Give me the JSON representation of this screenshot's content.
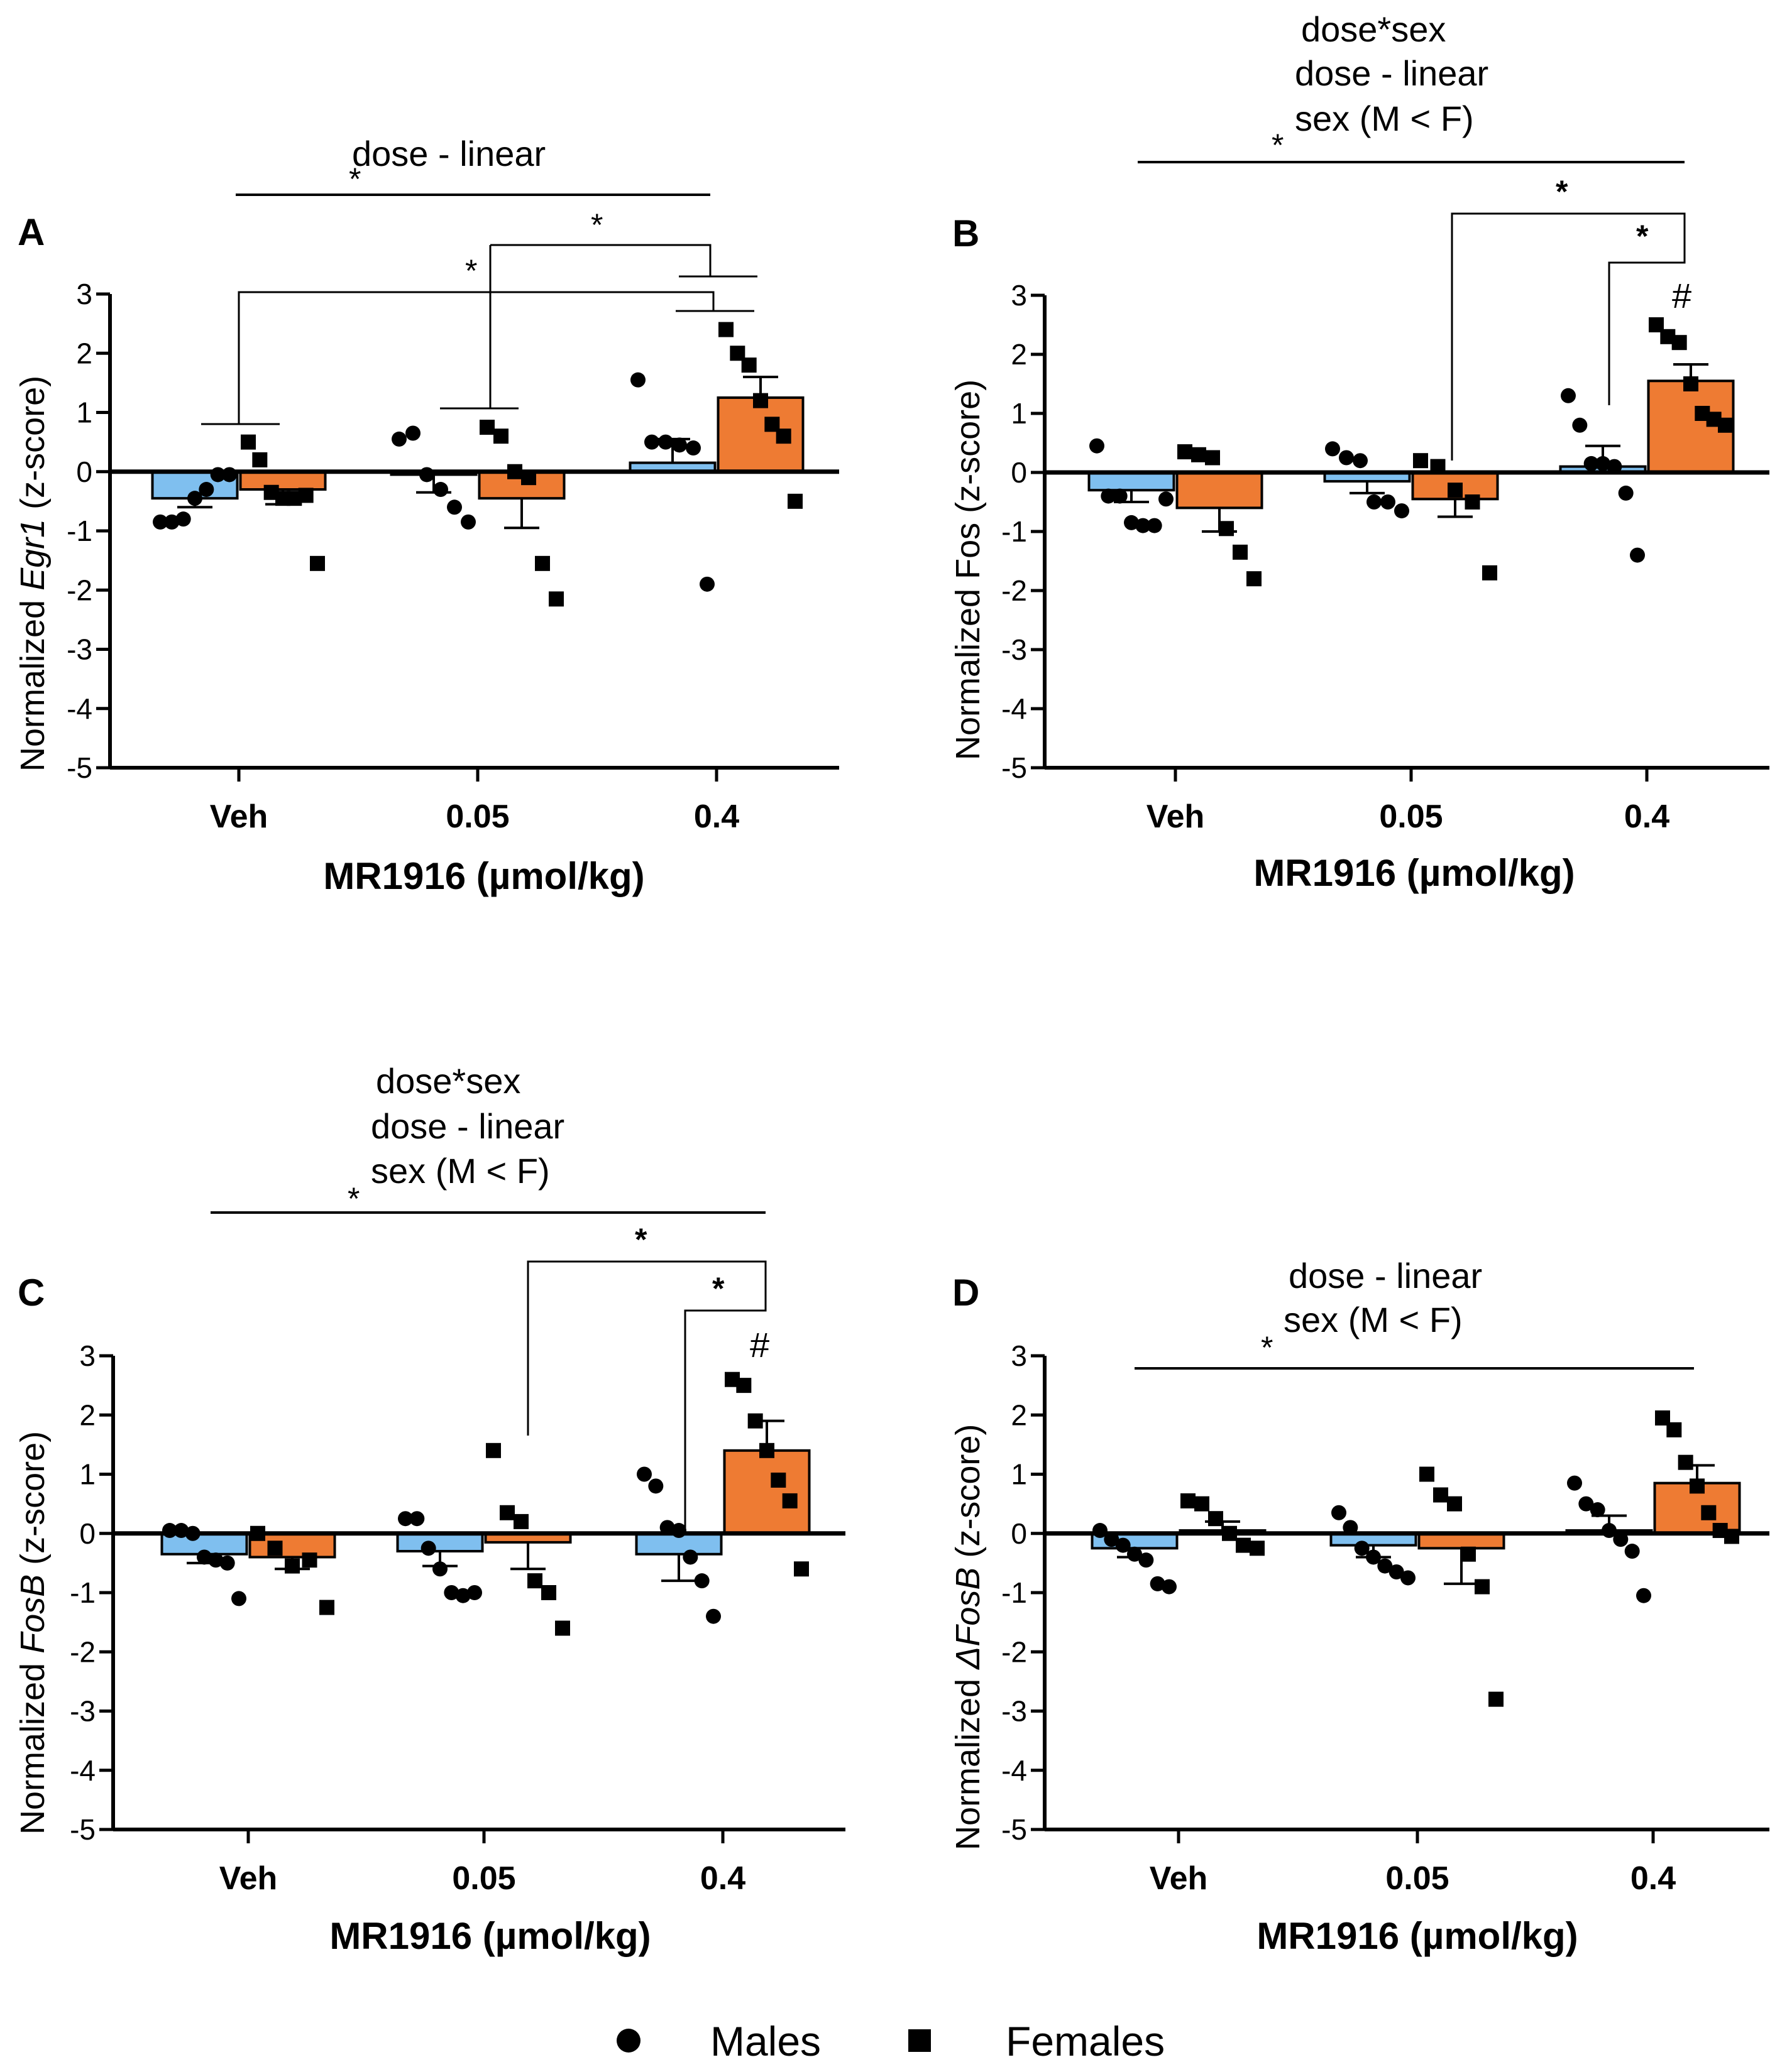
{
  "colors": {
    "male": "#7fbfef",
    "female": "#ee7b33",
    "axis": "#000000"
  },
  "legend": {
    "males_label": "Males",
    "females_label": "Females",
    "males_marker": "circle",
    "females_marker": "square"
  },
  "chart_data": [
    {
      "panel": "A",
      "type": "bar",
      "title": "",
      "ylabel_prefix": "Normalized ",
      "ylabel_gene": "Egr1",
      "ylabel_suffix": " (z-score)",
      "xlabel": "MR1916 (µmol/kg)",
      "categories": [
        "Veh",
        "0.05",
        "0.4"
      ],
      "ylim": [
        -5,
        3
      ],
      "yticks": [
        "3",
        "2",
        "1",
        "0",
        "-1",
        "-2",
        "-3",
        "-4",
        "-5"
      ],
      "series": [
        {
          "name": "Males",
          "values": [
            -0.45,
            -0.05,
            0.15
          ],
          "sem": [
            0.15,
            0.3,
            0.4
          ],
          "points": [
            [
              -0.85,
              -0.85,
              -0.8,
              -0.45,
              -0.3,
              -0.05,
              -0.05
            ],
            [
              0.55,
              0.65,
              -0.05,
              -0.3,
              -0.6,
              -0.85
            ],
            [
              1.55,
              0.5,
              0.5,
              0.45,
              0.4,
              -1.9
            ]
          ]
        },
        {
          "name": "Females",
          "values": [
            -0.3,
            -0.45,
            1.25
          ],
          "sem": [
            0.25,
            0.5,
            0.35
          ],
          "points": [
            [
              0.5,
              0.2,
              -0.35,
              -0.45,
              -0.45,
              -0.4,
              -1.55
            ],
            [
              0.75,
              0.6,
              0.0,
              -0.1,
              -1.55,
              -2.15
            ],
            [
              2.4,
              2.0,
              1.8,
              1.2,
              0.8,
              0.6,
              -0.5
            ]
          ]
        }
      ],
      "annotations": {
        "main_lines": [
          "dose - linear"
        ],
        "sig_mark": "*",
        "bracket_mark": "*"
      }
    },
    {
      "panel": "B",
      "type": "bar",
      "title": "",
      "ylabel_prefix": "Normalized ",
      "ylabel_gene": "Fos",
      "ylabel_suffix": " (z-score)",
      "xlabel": "MR1916 (µmol/kg)",
      "categories": [
        "Veh",
        "0.05",
        "0.4"
      ],
      "ylim": [
        -5,
        3
      ],
      "yticks": [
        "3",
        "2",
        "1",
        "0",
        "-1",
        "-2",
        "-3",
        "-4",
        "-5"
      ],
      "series": [
        {
          "name": "Males",
          "values": [
            -0.3,
            -0.15,
            0.1
          ],
          "sem": [
            0.2,
            0.2,
            0.35
          ],
          "points": [
            [
              0.45,
              -0.4,
              -0.4,
              -0.85,
              -0.9,
              -0.9,
              -0.45
            ],
            [
              0.4,
              0.25,
              0.2,
              -0.5,
              -0.5,
              -0.65
            ],
            [
              1.3,
              0.8,
              0.15,
              0.15,
              0.1,
              -0.35,
              -1.4
            ]
          ]
        },
        {
          "name": "Females",
          "values": [
            -0.6,
            -0.45,
            1.55
          ],
          "sem": [
            0.4,
            0.3,
            0.28
          ],
          "points": [
            [
              0.35,
              0.3,
              0.25,
              -0.95,
              -1.35,
              -1.8
            ],
            [
              0.2,
              0.1,
              -0.3,
              -0.5,
              -1.7
            ],
            [
              2.5,
              2.3,
              2.2,
              1.5,
              1.0,
              0.9,
              0.8
            ]
          ]
        }
      ],
      "annotations": {
        "main_lines": [
          "dose*sex",
          "dose - linear",
          "sex (M < F)"
        ],
        "sig_mark": "*",
        "bracket_mark": "*",
        "hash_mark": "#"
      }
    },
    {
      "panel": "C",
      "type": "bar",
      "title": "",
      "ylabel_prefix": "Normalized ",
      "ylabel_gene": "FosB",
      "ylabel_suffix": " (z-score)",
      "xlabel": "MR1916 (µmol/kg)",
      "categories": [
        "Veh",
        "0.05",
        "0.4"
      ],
      "ylim": [
        -5,
        3
      ],
      "yticks": [
        "3",
        "2",
        "1",
        "0",
        "-1",
        "-2",
        "-3",
        "-4",
        "-5"
      ],
      "series": [
        {
          "name": "Males",
          "values": [
            -0.35,
            -0.3,
            -0.35
          ],
          "sem": [
            0.15,
            0.25,
            0.45
          ],
          "points": [
            [
              0.05,
              0.05,
              0.0,
              -0.4,
              -0.45,
              -0.5,
              -1.1
            ],
            [
              0.25,
              0.25,
              -0.25,
              -0.6,
              -1.0,
              -1.05,
              -1.0
            ],
            [
              1.0,
              0.8,
              0.1,
              0.05,
              -0.4,
              -0.8,
              -1.4
            ]
          ]
        },
        {
          "name": "Females",
          "values": [
            -0.4,
            -0.15,
            1.4
          ],
          "sem": [
            0.2,
            0.45,
            0.5
          ],
          "points": [
            [
              0.0,
              -0.25,
              -0.55,
              -0.45,
              -1.25
            ],
            [
              1.4,
              0.35,
              0.2,
              -0.8,
              -1.0,
              -1.6
            ],
            [
              2.6,
              2.5,
              1.9,
              1.4,
              0.9,
              0.55,
              -0.6
            ]
          ]
        }
      ],
      "annotations": {
        "main_lines": [
          "dose*sex",
          "dose - linear",
          "sex (M < F)"
        ],
        "sig_mark": "*",
        "bracket_mark": "*",
        "hash_mark": "#"
      }
    },
    {
      "panel": "D",
      "type": "bar",
      "title": "",
      "ylabel_prefix": "Normalized ",
      "ylabel_gene": "ΔFosB",
      "ylabel_suffix": " (z-score)",
      "xlabel": "MR1916 (µmol/kg)",
      "categories": [
        "Veh",
        "0.05",
        "0.4"
      ],
      "ylim": [
        -5,
        3
      ],
      "yticks": [
        "3",
        "2",
        "1",
        "0",
        "-1",
        "-2",
        "-3",
        "-4",
        "-5"
      ],
      "series": [
        {
          "name": "Males",
          "values": [
            -0.25,
            -0.2,
            0.05
          ],
          "sem": [
            0.15,
            0.2,
            0.25
          ],
          "points": [
            [
              0.05,
              -0.1,
              -0.2,
              -0.35,
              -0.45,
              -0.85,
              -0.9
            ],
            [
              0.35,
              0.1,
              -0.25,
              -0.4,
              -0.55,
              -0.65,
              -0.75
            ],
            [
              0.85,
              0.5,
              0.4,
              0.05,
              -0.1,
              -0.3,
              -1.05
            ]
          ]
        },
        {
          "name": "Females",
          "values": [
            0.05,
            -0.25,
            0.85
          ],
          "sem": [
            0.15,
            0.6,
            0.3
          ],
          "points": [
            [
              0.55,
              0.5,
              0.25,
              0.0,
              -0.2,
              -0.25
            ],
            [
              1.0,
              0.65,
              0.5,
              -0.35,
              -0.9,
              -2.8
            ],
            [
              1.95,
              1.75,
              1.2,
              0.8,
              0.35,
              0.05,
              -0.05
            ]
          ]
        }
      ],
      "annotations": {
        "main_lines": [
          "dose - linear",
          "sex (M < F)"
        ],
        "sig_mark": "*"
      }
    }
  ]
}
